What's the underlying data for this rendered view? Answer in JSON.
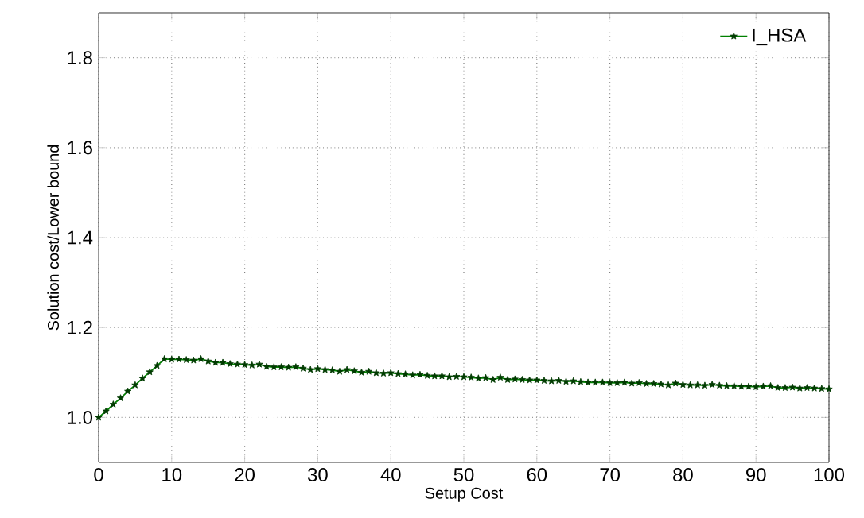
{
  "chart_data": {
    "type": "line",
    "xlabel": "Setup Cost",
    "ylabel": "Solution cost/Lower bound",
    "x": [
      0,
      1,
      2,
      3,
      4,
      5,
      6,
      7,
      8,
      9,
      10,
      11,
      12,
      13,
      14,
      15,
      16,
      17,
      18,
      19,
      20,
      21,
      22,
      23,
      24,
      25,
      26,
      27,
      28,
      29,
      30,
      31,
      32,
      33,
      34,
      35,
      36,
      37,
      38,
      39,
      40,
      41,
      42,
      43,
      44,
      45,
      46,
      47,
      48,
      49,
      50,
      51,
      52,
      53,
      54,
      55,
      56,
      57,
      58,
      59,
      60,
      61,
      62,
      63,
      64,
      65,
      66,
      67,
      68,
      69,
      70,
      71,
      72,
      73,
      74,
      75,
      76,
      77,
      78,
      79,
      80,
      81,
      82,
      83,
      84,
      85,
      86,
      87,
      88,
      89,
      90,
      91,
      92,
      93,
      94,
      95,
      96,
      97,
      98,
      99,
      100
    ],
    "series": [
      {
        "name": "I_HSA",
        "color": "#008000",
        "values": [
          1.0,
          1.014,
          1.029,
          1.043,
          1.058,
          1.072,
          1.087,
          1.101,
          1.115,
          1.13,
          1.129,
          1.129,
          1.128,
          1.127,
          1.13,
          1.125,
          1.122,
          1.122,
          1.119,
          1.118,
          1.117,
          1.116,
          1.118,
          1.113,
          1.112,
          1.112,
          1.111,
          1.112,
          1.109,
          1.106,
          1.108,
          1.106,
          1.105,
          1.102,
          1.106,
          1.103,
          1.1,
          1.102,
          1.099,
          1.098,
          1.099,
          1.097,
          1.096,
          1.094,
          1.095,
          1.093,
          1.092,
          1.092,
          1.09,
          1.091,
          1.09,
          1.089,
          1.087,
          1.088,
          1.084,
          1.089,
          1.084,
          1.085,
          1.084,
          1.083,
          1.083,
          1.082,
          1.081,
          1.082,
          1.08,
          1.081,
          1.079,
          1.078,
          1.078,
          1.078,
          1.077,
          1.077,
          1.078,
          1.076,
          1.077,
          1.075,
          1.075,
          1.074,
          1.072,
          1.076,
          1.073,
          1.072,
          1.072,
          1.071,
          1.073,
          1.071,
          1.07,
          1.07,
          1.069,
          1.069,
          1.068,
          1.069,
          1.07,
          1.066,
          1.066,
          1.067,
          1.065,
          1.066,
          1.065,
          1.064,
          1.063
        ]
      }
    ],
    "xlim": [
      0,
      100
    ],
    "ylim": [
      0.9,
      1.9
    ],
    "xticks": [
      0,
      10,
      20,
      30,
      40,
      50,
      60,
      70,
      80,
      90,
      100
    ],
    "yticks": [
      {
        "value": 1.0,
        "label": "1.0"
      },
      1.2,
      1.4,
      1.6,
      1.8
    ],
    "grid": true,
    "legend": "top right",
    "marker": "star",
    "line_style": "solid"
  }
}
